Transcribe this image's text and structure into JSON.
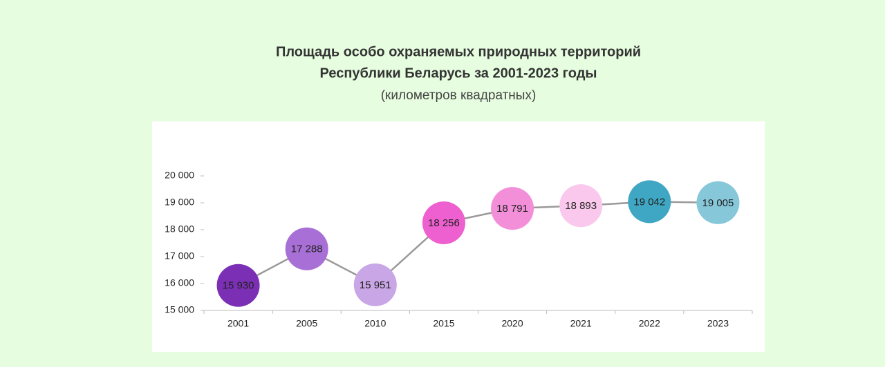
{
  "chart_data": {
    "type": "line",
    "title": [
      "Площадь особо охраняемых природных территорий",
      "Республики Беларусь за 2001-2023 годы"
    ],
    "subtitle": "(километров квадратных)",
    "categories": [
      "2001",
      "2005",
      "2010",
      "2015",
      "2020",
      "2021",
      "2022",
      "2023"
    ],
    "series": [
      {
        "name": "Площадь",
        "color": "#999999",
        "point_colors": [
          "#7b2fb5",
          "#a86fd6",
          "#c9a6e6",
          "#ee5fcf",
          "#f38fd9",
          "#f9c8ec",
          "#3fa7c4",
          "#86c7da"
        ],
        "values": [
          15930,
          17288,
          15951,
          18256,
          18791,
          18893,
          19042,
          19005
        ],
        "value_labels": [
          "15 930",
          "17 288",
          "15 951",
          "18 256",
          "18 791",
          "18 893",
          "19 042",
          "19 005"
        ]
      }
    ],
    "ylim": [
      15000,
      20000
    ],
    "yticks": [
      {
        "value": 15000,
        "label": "15 000"
      },
      {
        "value": 16000,
        "label": "16 000"
      },
      {
        "value": 17000,
        "label": "17 000"
      },
      {
        "value": 18000,
        "label": "18 000"
      },
      {
        "value": 19000,
        "label": "19 000"
      },
      {
        "value": 20000,
        "label": "20 000"
      }
    ],
    "grid": false
  }
}
